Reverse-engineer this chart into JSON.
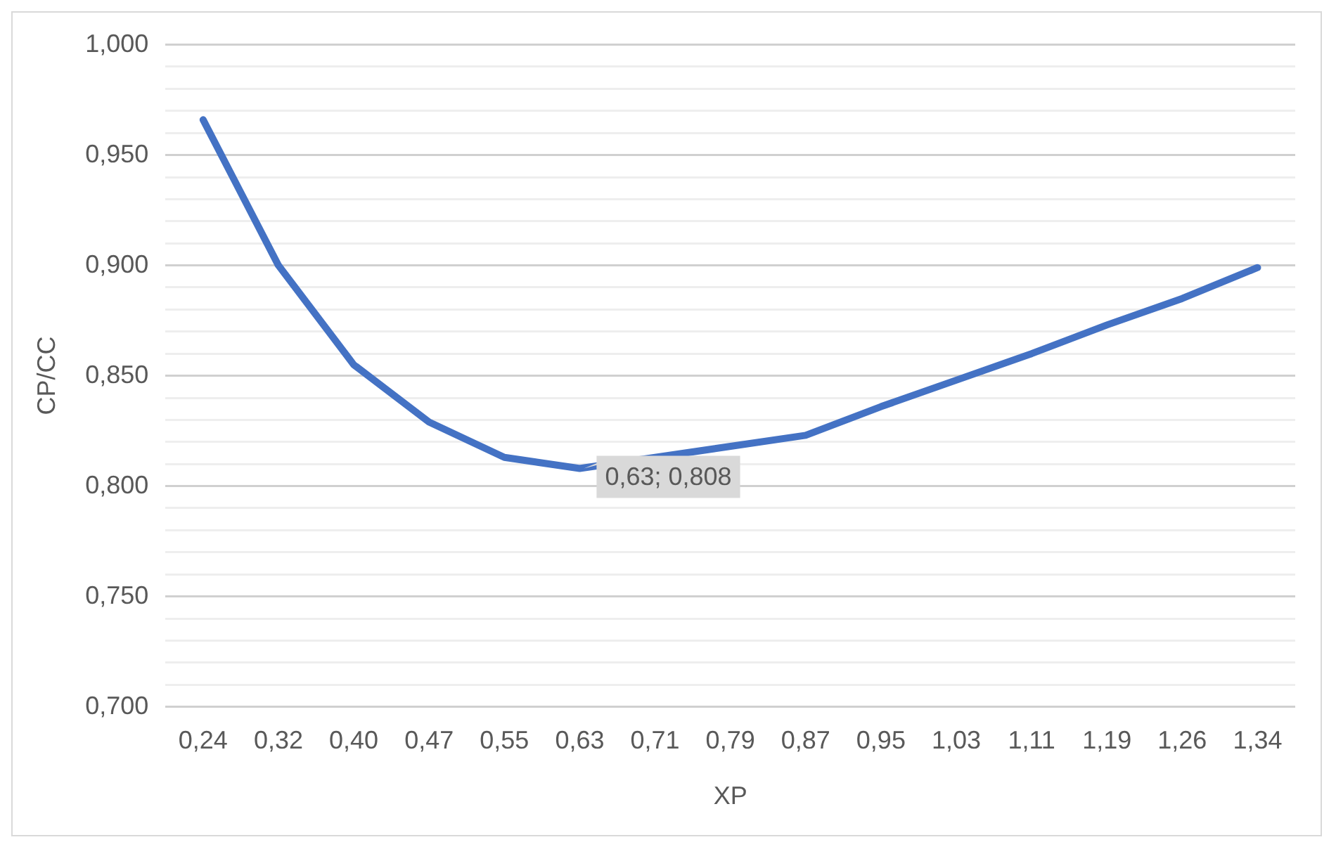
{
  "chart_data": {
    "type": "line",
    "xlabel": "XP",
    "ylabel": "CP/CC",
    "categories": [
      "0,24",
      "0,32",
      "0,40",
      "0,47",
      "0,55",
      "0,63",
      "0,71",
      "0,79",
      "0,87",
      "0,95",
      "1,03",
      "1,11",
      "1,19",
      "1,26",
      "1,34"
    ],
    "series": [
      {
        "color": "#4472c4",
        "values": [
          0.966,
          0.9,
          0.855,
          0.829,
          0.813,
          0.808,
          null,
          null,
          0.823,
          0.836,
          0.848,
          0.86,
          0.873,
          0.885,
          0.899
        ]
      }
    ],
    "ylim": [
      0.7,
      1.0
    ],
    "yticks": [
      {
        "value": 0.7,
        "label": "0,700"
      },
      {
        "value": 0.71,
        "label": null
      },
      {
        "value": 0.72,
        "label": null
      },
      {
        "value": 0.73,
        "label": null
      },
      {
        "value": 0.74,
        "label": null
      },
      {
        "value": 0.75,
        "label": "0,750"
      },
      {
        "value": 0.76,
        "label": null
      },
      {
        "value": 0.77,
        "label": null
      },
      {
        "value": 0.78,
        "label": null
      },
      {
        "value": 0.79,
        "label": null
      },
      {
        "value": 0.8,
        "label": "0,800"
      },
      {
        "value": 0.81,
        "label": null
      },
      {
        "value": 0.82,
        "label": null
      },
      {
        "value": 0.83,
        "label": null
      },
      {
        "value": 0.84,
        "label": null
      },
      {
        "value": 0.85,
        "label": "0,850"
      },
      {
        "value": 0.86,
        "label": null
      },
      {
        "value": 0.87,
        "label": null
      },
      {
        "value": 0.88,
        "label": null
      },
      {
        "value": 0.89,
        "label": null
      },
      {
        "value": 0.9,
        "label": "0,900"
      },
      {
        "value": 0.91,
        "label": null
      },
      {
        "value": 0.92,
        "label": null
      },
      {
        "value": 0.93,
        "label": null
      },
      {
        "value": 0.94,
        "label": null
      },
      {
        "value": 0.95,
        "label": "0,950"
      },
      {
        "value": 0.96,
        "label": null
      },
      {
        "value": 0.97,
        "label": null
      },
      {
        "value": 0.98,
        "label": null
      },
      {
        "value": 0.99,
        "label": null
      },
      {
        "value": 1.0,
        "label": "1,000"
      }
    ],
    "annotations": [
      {
        "text": "0,63; 0,808",
        "x": "0,63",
        "y": 0.808
      }
    ],
    "grid": "y",
    "legend": false,
    "marker": "none",
    "line_style": "solid"
  }
}
